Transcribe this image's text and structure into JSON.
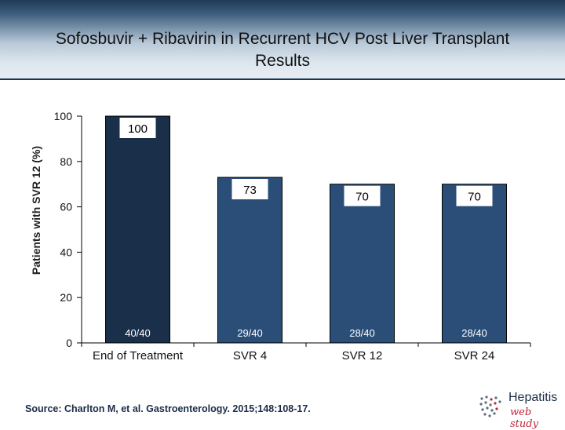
{
  "title": "Sofosbuvir + Ribavirin in Recurrent HCV Post Liver Transplant Results",
  "title_lines": [
    "Sofosbuvir + Ribavirin in Recurrent HCV Post Liver Transplant",
    "Results"
  ],
  "chart_data": {
    "type": "bar",
    "title": "Sofosbuvir + Ribavirin in Recurrent HCV Post Liver Transplant Results",
    "categories": [
      "End of Treatment",
      "SVR 4",
      "SVR 12",
      "SVR 24"
    ],
    "values": [
      100,
      73,
      70,
      70
    ],
    "value_labels": [
      "100",
      "73",
      "70",
      "70"
    ],
    "counts": [
      "40/40",
      "29/40",
      "28/40",
      "28/40"
    ],
    "ylabel": "Patients with SVR 12 (%)",
    "xlabel": "",
    "ylim": [
      0,
      100
    ],
    "yticks": [
      0,
      20,
      40,
      60,
      80,
      100
    ],
    "grid": false,
    "colors": {
      "first_bar": "#1a2f4a",
      "bars": "#2b4e78",
      "label_box": "#ffffff",
      "axis": "#000000"
    }
  },
  "source": "Source: Charlton M, et al. Gastroenterology. 2015;148:108-17.",
  "logo": {
    "line1": "Hepatitis",
    "line2": "web study",
    "icon": "hepatitis-dots-icon",
    "colors": {
      "text": "#1b2c48",
      "accent": "#c2223a",
      "dots": "#5a6c82"
    }
  }
}
